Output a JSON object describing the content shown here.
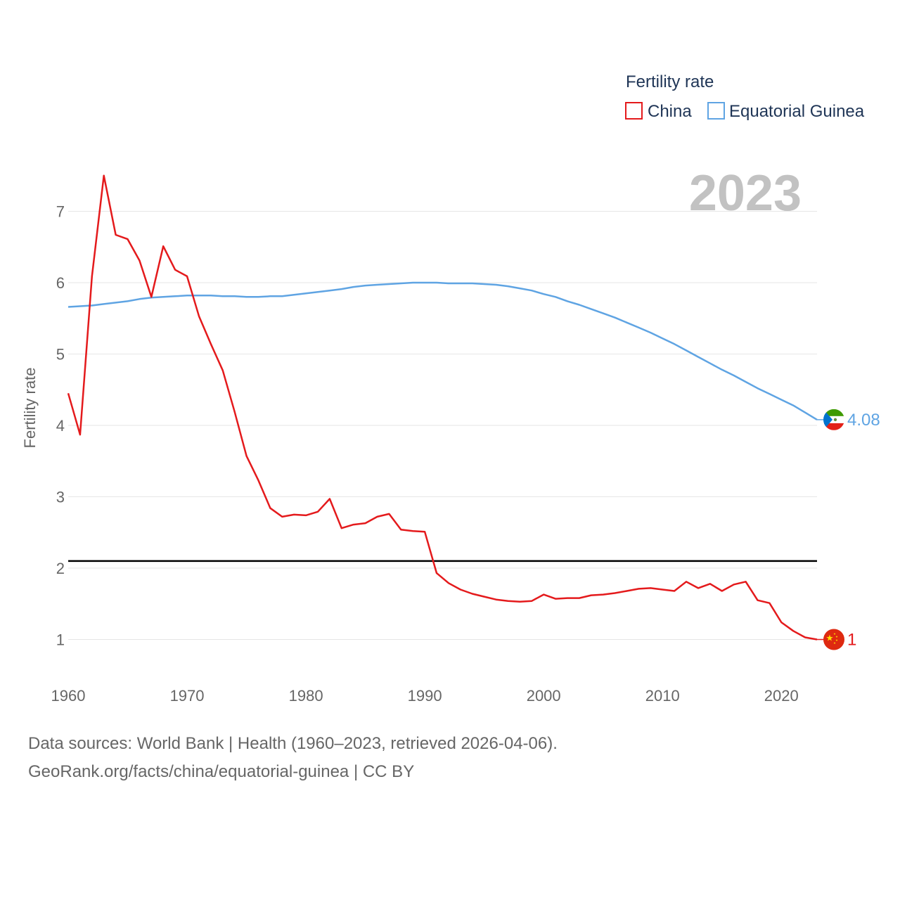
{
  "chart_data": {
    "type": "line",
    "title": "",
    "year_label": "2023",
    "ylabel": "Fertility rate",
    "xlabel": "",
    "xlim": [
      1960,
      2023
    ],
    "ylim": [
      0.5,
      7.6
    ],
    "yticks": [
      1,
      2,
      3,
      4,
      5,
      6,
      7
    ],
    "xticks": [
      1960,
      1970,
      1980,
      1990,
      2000,
      2010,
      2020
    ],
    "reference_line": {
      "y": 2.1,
      "color": "#000000"
    },
    "legend": {
      "title": "Fertility rate",
      "placement": "top-right"
    },
    "x": [
      1960,
      1961,
      1962,
      1963,
      1964,
      1965,
      1966,
      1967,
      1968,
      1969,
      1970,
      1971,
      1972,
      1973,
      1974,
      1975,
      1976,
      1977,
      1978,
      1979,
      1980,
      1981,
      1982,
      1983,
      1984,
      1985,
      1986,
      1987,
      1988,
      1989,
      1990,
      1991,
      1992,
      1993,
      1994,
      1995,
      1996,
      1997,
      1998,
      1999,
      2000,
      2001,
      2002,
      2003,
      2004,
      2005,
      2006,
      2007,
      2008,
      2009,
      2010,
      2011,
      2012,
      2013,
      2014,
      2015,
      2016,
      2017,
      2018,
      2019,
      2020,
      2021,
      2022,
      2023
    ],
    "series": [
      {
        "name": "China",
        "color": "#e41a1c",
        "end_label": "1",
        "flag": "china-flag",
        "values": [
          4.45,
          3.87,
          6.09,
          7.5,
          6.67,
          6.61,
          6.31,
          5.8,
          6.51,
          6.18,
          6.09,
          5.53,
          5.14,
          4.77,
          4.19,
          3.57,
          3.23,
          2.84,
          2.72,
          2.75,
          2.74,
          2.79,
          2.97,
          2.56,
          2.61,
          2.63,
          2.72,
          2.76,
          2.54,
          2.52,
          2.51,
          1.93,
          1.79,
          1.7,
          1.64,
          1.6,
          1.56,
          1.54,
          1.53,
          1.54,
          1.63,
          1.57,
          1.58,
          1.58,
          1.62,
          1.63,
          1.65,
          1.68,
          1.71,
          1.72,
          1.7,
          1.68,
          1.81,
          1.72,
          1.78,
          1.68,
          1.77,
          1.81,
          1.55,
          1.51,
          1.24,
          1.12,
          1.03,
          1.0
        ]
      },
      {
        "name": "Equatorial Guinea",
        "color": "#5fa4e3",
        "end_label": "4.08",
        "flag": "equatorial-guinea-flag",
        "values": [
          5.66,
          5.67,
          5.68,
          5.7,
          5.72,
          5.74,
          5.77,
          5.79,
          5.8,
          5.81,
          5.82,
          5.82,
          5.82,
          5.81,
          5.81,
          5.8,
          5.8,
          5.81,
          5.81,
          5.83,
          5.85,
          5.87,
          5.89,
          5.91,
          5.94,
          5.96,
          5.97,
          5.98,
          5.99,
          6.0,
          6.0,
          6.0,
          5.99,
          5.99,
          5.99,
          5.98,
          5.97,
          5.95,
          5.92,
          5.89,
          5.84,
          5.8,
          5.74,
          5.69,
          5.63,
          5.57,
          5.51,
          5.44,
          5.37,
          5.3,
          5.22,
          5.14,
          5.05,
          4.96,
          4.87,
          4.78,
          4.7,
          4.61,
          4.52,
          4.44,
          4.36,
          4.28,
          4.18,
          4.08
        ]
      }
    ]
  },
  "footer": {
    "line1": "Data sources: World Bank | Health (1960–2023, retrieved 2026-04-06).",
    "line2": "GeoRank.org/facts/china/equatorial-guinea | CC BY"
  }
}
